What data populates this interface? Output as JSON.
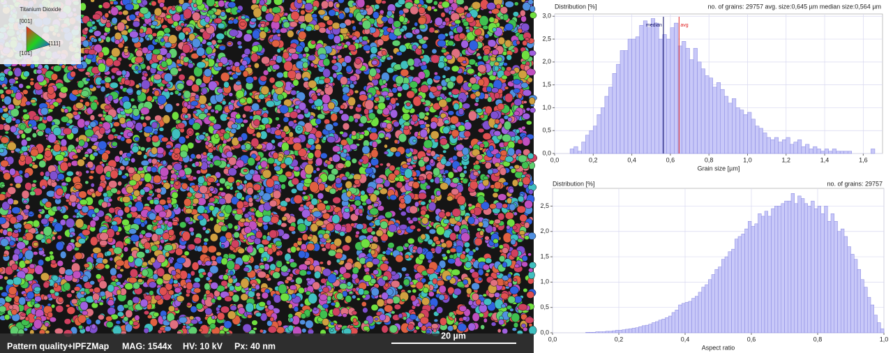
{
  "map": {
    "legend_title": "Titanium Dioxide",
    "legend_labels": [
      "[001]",
      "[101]",
      "[111]"
    ],
    "footer": [
      "Pattern quality+IPFZMap",
      "MAG: 1544x",
      "HV: 10 kV",
      "Px: 40 nm"
    ],
    "scale_bar": "20 µm"
  },
  "chart_data": [
    {
      "type": "histogram",
      "title": "Distribution [%]",
      "subtitle": "no. of grains: 29757  avg. size:0,645 µm median size:0,564 µm",
      "x_label": "Grain size [µm]",
      "color": "#c8c8f8",
      "grid": true,
      "xlim": [
        0,
        1.7
      ],
      "ylim": [
        0,
        3.05
      ],
      "xticks": [
        {
          "value": 0,
          "label": "0,0"
        },
        {
          "value": 0.2,
          "label": "0,2"
        },
        {
          "value": 0.4,
          "label": "0,4"
        },
        {
          "value": 0.6,
          "label": "0,6"
        },
        {
          "value": 0.8,
          "label": "0,8"
        },
        {
          "value": 1.0,
          "label": "1,0"
        },
        {
          "value": 1.2,
          "label": "1,2"
        },
        {
          "value": 1.4,
          "label": "1,4"
        },
        {
          "value": 1.6,
          "label": "1,6"
        }
      ],
      "yticks": [
        {
          "value": 0,
          "label": "0,0"
        },
        {
          "value": 0.5,
          "label": "0,5"
        },
        {
          "value": 1.0,
          "label": "1,0"
        },
        {
          "value": 1.5,
          "label": "1,5"
        },
        {
          "value": 2.0,
          "label": "2,0"
        },
        {
          "value": 2.5,
          "label": "2,5"
        },
        {
          "value": 3.0,
          "label": "3,0"
        }
      ],
      "markers": [
        {
          "label": "median",
          "value": 0.564,
          "color": "#000060"
        },
        {
          "label": "avg",
          "value": 0.645,
          "color": "#e02020"
        }
      ],
      "bins": [
        0.08,
        0.1,
        0.12,
        0.14,
        0.16,
        0.18,
        0.2,
        0.22,
        0.24,
        0.26,
        0.28,
        0.3,
        0.32,
        0.34,
        0.36,
        0.38,
        0.4,
        0.42,
        0.44,
        0.46,
        0.48,
        0.5,
        0.52,
        0.54,
        0.56,
        0.58,
        0.6,
        0.62,
        0.64,
        0.66,
        0.68,
        0.7,
        0.72,
        0.74,
        0.76,
        0.78,
        0.8,
        0.82,
        0.84,
        0.86,
        0.88,
        0.9,
        0.92,
        0.94,
        0.96,
        0.98,
        1.0,
        1.02,
        1.04,
        1.06,
        1.08,
        1.1,
        1.12,
        1.14,
        1.16,
        1.18,
        1.2,
        1.22,
        1.24,
        1.26,
        1.28,
        1.3,
        1.32,
        1.34,
        1.36,
        1.38,
        1.4,
        1.42,
        1.44,
        1.46,
        1.48,
        1.5,
        1.52,
        1.54,
        1.56,
        1.58,
        1.6,
        1.62,
        1.64,
        1.66
      ],
      "values": [
        0.1,
        0.15,
        0.05,
        0.25,
        0.4,
        0.5,
        0.6,
        0.85,
        1.0,
        1.25,
        1.45,
        1.75,
        1.95,
        2.25,
        2.25,
        2.5,
        2.5,
        2.55,
        2.8,
        2.9,
        2.75,
        2.95,
        2.85,
        2.5,
        2.6,
        2.5,
        2.75,
        2.85,
        2.35,
        2.45,
        2.3,
        2.05,
        2.3,
        2.0,
        1.85,
        1.7,
        1.65,
        1.45,
        1.55,
        1.4,
        1.25,
        1.1,
        1.2,
        1.0,
        0.95,
        0.85,
        0.9,
        0.75,
        0.6,
        0.55,
        0.45,
        0.35,
        0.3,
        0.35,
        0.25,
        0.3,
        0.35,
        0.2,
        0.25,
        0.3,
        0.15,
        0.2,
        0.1,
        0.15,
        0.1,
        0.05,
        0.1,
        0.05,
        0.1,
        0.05,
        0.05,
        0.05,
        0.05,
        0,
        0,
        0,
        0,
        0,
        0.1
      ]
    },
    {
      "type": "histogram",
      "title": "Distribution [%]",
      "subtitle": "no. of grains: 29757",
      "x_label": "Aspect ratio",
      "color": "#c8c8f8",
      "grid": true,
      "xlim": [
        0,
        1.0
      ],
      "ylim": [
        0,
        2.85
      ],
      "xticks": [
        {
          "value": 0,
          "label": "0,0"
        },
        {
          "value": 0.2,
          "label": "0,2"
        },
        {
          "value": 0.4,
          "label": "0,4"
        },
        {
          "value": 0.6,
          "label": "0,6"
        },
        {
          "value": 0.8,
          "label": "0,8"
        },
        {
          "value": 1.0,
          "label": "1,0"
        }
      ],
      "yticks": [
        {
          "value": 0,
          "label": "0,0"
        },
        {
          "value": 0.5,
          "label": "0,5"
        },
        {
          "value": 1.0,
          "label": "1,0"
        },
        {
          "value": 1.5,
          "label": "1,5"
        },
        {
          "value": 2.0,
          "label": "2,0"
        },
        {
          "value": 2.5,
          "label": "2,5"
        }
      ],
      "bins": [
        0.1,
        0.11,
        0.12,
        0.13,
        0.14,
        0.15,
        0.16,
        0.17,
        0.18,
        0.19,
        0.2,
        0.21,
        0.22,
        0.23,
        0.24,
        0.25,
        0.26,
        0.27,
        0.28,
        0.29,
        0.3,
        0.31,
        0.32,
        0.33,
        0.34,
        0.35,
        0.36,
        0.37,
        0.38,
        0.39,
        0.4,
        0.41,
        0.42,
        0.43,
        0.44,
        0.45,
        0.46,
        0.47,
        0.48,
        0.49,
        0.5,
        0.51,
        0.52,
        0.53,
        0.54,
        0.55,
        0.56,
        0.57,
        0.58,
        0.59,
        0.6,
        0.61,
        0.62,
        0.63,
        0.64,
        0.65,
        0.66,
        0.67,
        0.68,
        0.69,
        0.7,
        0.71,
        0.72,
        0.73,
        0.74,
        0.75,
        0.76,
        0.77,
        0.78,
        0.79,
        0.8,
        0.81,
        0.82,
        0.83,
        0.84,
        0.85,
        0.86,
        0.87,
        0.88,
        0.89,
        0.9,
        0.91,
        0.92,
        0.93,
        0.94,
        0.95,
        0.96,
        0.97,
        0.98,
        0.99,
        1.0
      ],
      "values": [
        0.01,
        0.01,
        0.01,
        0.02,
        0.02,
        0.02,
        0.03,
        0.03,
        0.04,
        0.05,
        0.05,
        0.06,
        0.07,
        0.08,
        0.09,
        0.1,
        0.12,
        0.14,
        0.15,
        0.17,
        0.2,
        0.22,
        0.25,
        0.27,
        0.3,
        0.33,
        0.4,
        0.45,
        0.55,
        0.58,
        0.6,
        0.62,
        0.68,
        0.72,
        0.8,
        0.9,
        0.95,
        1.05,
        1.15,
        1.25,
        1.3,
        1.45,
        1.5,
        1.6,
        1.65,
        1.85,
        1.9,
        1.95,
        2.05,
        2.2,
        2.1,
        2.15,
        2.35,
        2.3,
        2.4,
        2.3,
        2.45,
        2.5,
        2.5,
        2.55,
        2.6,
        2.6,
        2.75,
        2.55,
        2.7,
        2.65,
        2.55,
        2.5,
        2.6,
        2.45,
        2.5,
        2.35,
        2.5,
        2.2,
        2.35,
        2.2,
        2.0,
        2.05,
        1.9,
        1.7,
        1.55,
        1.45,
        1.25,
        1.05,
        0.9,
        0.7,
        0.55,
        0.35,
        0.2,
        0.08
      ]
    }
  ]
}
